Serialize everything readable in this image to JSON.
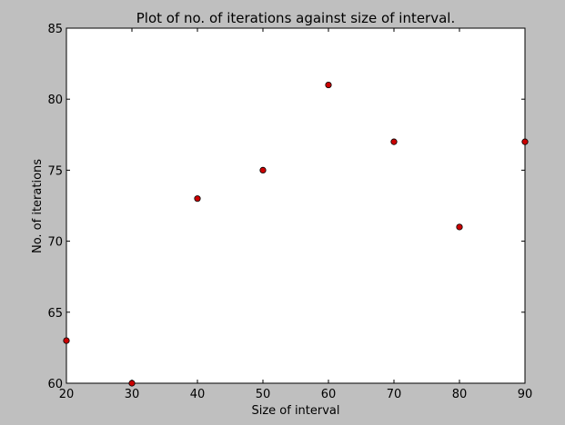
{
  "colors": {
    "figure_background": "#bfbfbf",
    "plot_background": "#ffffff",
    "axes_edge": "#000000",
    "marker_fill": "#cc0000",
    "marker_edge": "#000000"
  },
  "chart_data": {
    "type": "scatter",
    "title": "Plot of no. of iterations against size of interval.",
    "xlabel": "Size of interval",
    "ylabel": "No. of iterations",
    "xlim": [
      20,
      90
    ],
    "ylim": [
      60,
      85
    ],
    "xticks": [
      20,
      30,
      40,
      50,
      60,
      70,
      80,
      90
    ],
    "yticks": [
      60,
      65,
      70,
      75,
      80,
      85
    ],
    "grid": false,
    "legend": "none",
    "series": [
      {
        "marker": "circle",
        "x": [
          20,
          30,
          40,
          50,
          60,
          70,
          80,
          90
        ],
        "y": [
          63,
          60,
          73,
          75,
          81,
          77,
          71,
          77
        ]
      }
    ]
  }
}
